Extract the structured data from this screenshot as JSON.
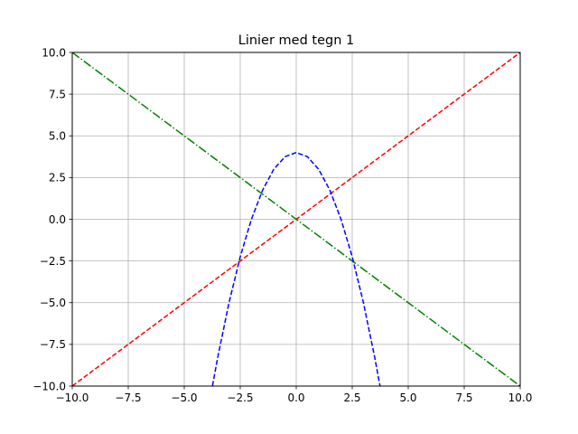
{
  "chart_data": {
    "type": "line",
    "title": "Linier med tegn 1",
    "xlabel": "",
    "ylabel": "",
    "xlim": [
      -10,
      10
    ],
    "ylim": [
      -10,
      10
    ],
    "grid": true,
    "x_ticks": [
      -10,
      -7.5,
      -5,
      -2.5,
      0,
      2.5,
      5,
      7.5,
      10
    ],
    "y_ticks": [
      -10,
      -7.5,
      -5,
      -2.5,
      0,
      2.5,
      5,
      7.5,
      10
    ],
    "x_tick_labels": [
      "−10.0",
      "−7.5",
      "−5.0",
      "−2.5",
      "0.0",
      "2.5",
      "5.0",
      "7.5",
      "10.0"
    ],
    "y_tick_labels": [
      "−10.0",
      "−7.5",
      "−5.0",
      "−2.5",
      "0.0",
      "2.5",
      "5.0",
      "7.5",
      "10.0"
    ],
    "series": [
      {
        "color": "#ff0000",
        "linestyle": "dashed",
        "x": [
          -10,
          10
        ],
        "y": [
          -10,
          10
        ]
      },
      {
        "color": "#008000",
        "linestyle": "dashdot",
        "x": [
          -10,
          10
        ],
        "y": [
          10,
          -10
        ]
      },
      {
        "color": "#0000ff",
        "linestyle": "dashed",
        "x": [
          -3.74,
          -3.5,
          -3,
          -2.5,
          -2,
          -1.5,
          -1,
          -0.5,
          0,
          0.5,
          1,
          1.5,
          2,
          2.5,
          3,
          3.5,
          3.74
        ],
        "y": [
          -9.99,
          -8.25,
          -5,
          -2.25,
          0,
          1.75,
          3,
          3.75,
          4,
          3.75,
          3,
          1.75,
          0,
          -2.25,
          -5,
          -8.25,
          -9.99
        ]
      }
    ]
  }
}
